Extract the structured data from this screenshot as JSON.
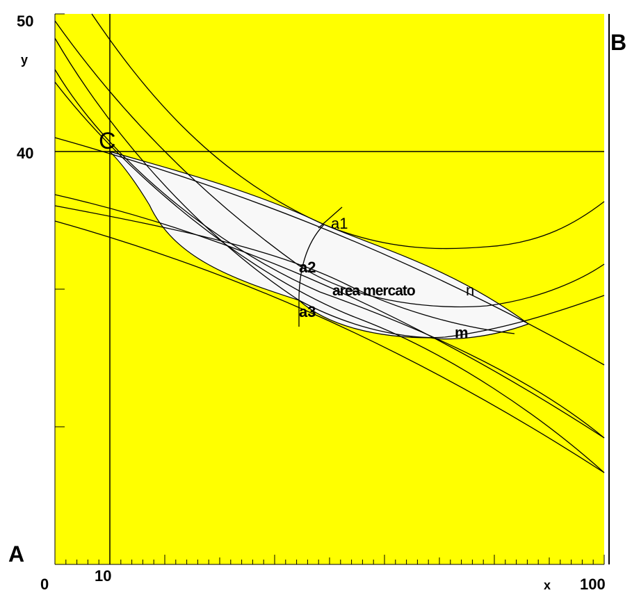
{
  "colors": {
    "plot_bg": "#ffff00",
    "market_area": "#f8f8f8",
    "curve": "#000000",
    "page_bg": "#ffffff"
  },
  "axes": {
    "x_label": "x",
    "y_label": "y",
    "x_ticks": [
      "0",
      "10",
      "100"
    ],
    "y_ticks": [
      "50",
      "40"
    ]
  },
  "corners": {
    "a": "A",
    "b": "B",
    "c": "C"
  },
  "annotations": {
    "a1": "a1",
    "a2": "a2",
    "a3": "a3",
    "market_area": "area mercato",
    "n": "n",
    "m": "m"
  }
}
